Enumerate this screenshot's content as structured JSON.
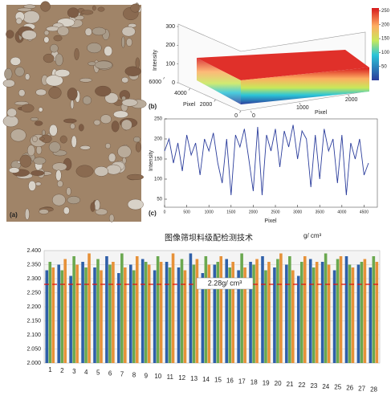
{
  "chart_data": [
    {
      "type": "photo",
      "label": "(a)"
    },
    {
      "type": "surface",
      "label": "(b)",
      "zlabel": "Intensity",
      "xlabel": "Pixel",
      "ylabel": "Pixel",
      "zlim": [
        0,
        300
      ],
      "zticks": [
        0,
        100,
        200,
        300
      ],
      "ylim": [
        0,
        6000
      ],
      "yticks": [
        0,
        2000,
        4000,
        6000
      ],
      "xlim": [
        0,
        2400
      ],
      "xticks": [
        0,
        1000,
        2000
      ],
      "clim": [
        0,
        260
      ],
      "cticks": [
        50,
        100,
        150,
        200,
        250
      ]
    },
    {
      "type": "line",
      "label": "(c)",
      "ylabel": "Intensity",
      "xlabel": "Pixel",
      "color": "#2b3d9c",
      "xlim": [
        0,
        4800
      ],
      "xticks": [
        0,
        500,
        1000,
        1500,
        2000,
        2500,
        3000,
        3500,
        4000,
        4500
      ],
      "ylim": [
        30,
        250
      ],
      "yticks": [
        50,
        100,
        150,
        200,
        250
      ],
      "x": [
        0,
        100,
        200,
        300,
        400,
        500,
        600,
        700,
        800,
        900,
        1000,
        1100,
        1200,
        1300,
        1400,
        1500,
        1600,
        1700,
        1800,
        1900,
        2000,
        2100,
        2200,
        2300,
        2400,
        2500,
        2600,
        2700,
        2800,
        2900,
        3000,
        3100,
        3200,
        3300,
        3400,
        3500,
        3600,
        3700,
        3800,
        3900,
        4000,
        4100,
        4200,
        4300,
        4400,
        4500,
        4600
      ],
      "values": [
        170,
        200,
        140,
        190,
        120,
        210,
        160,
        190,
        110,
        200,
        170,
        215,
        140,
        90,
        200,
        60,
        210,
        180,
        225,
        150,
        70,
        230,
        60,
        210,
        170,
        225,
        130,
        220,
        180,
        235,
        150,
        220,
        200,
        80,
        210,
        100,
        225,
        170,
        200,
        90,
        210,
        60,
        190,
        150,
        200,
        110,
        140
      ]
    },
    {
      "type": "bar",
      "title": "图像筛坝料级配检测技术",
      "unit": "g/ cm³",
      "annotation": "2.28g/ cm³",
      "reference_line": 2.28,
      "ylim": [
        2.0,
        2.4
      ],
      "yticks": [
        {
          "value": 2.0,
          "label": "2.000"
        },
        {
          "value": 2.05,
          "label": "2.050"
        },
        {
          "value": 2.1,
          "label": "2.100"
        },
        {
          "value": 2.15,
          "label": "2.150"
        },
        {
          "value": 2.2,
          "label": "2.200"
        },
        {
          "value": 2.25,
          "label": "2.250"
        },
        {
          "value": 2.3,
          "label": "2.300"
        },
        {
          "value": 2.35,
          "label": "2.350"
        },
        {
          "value": 2.4,
          "label": "2.400"
        }
      ],
      "categories": [
        "1",
        "2",
        "3",
        "4",
        "5",
        "6",
        "7",
        "8",
        "9",
        "10",
        "11",
        "12",
        "13",
        "14",
        "15",
        "16",
        "17",
        "18",
        "19",
        "20",
        "21",
        "22",
        "23",
        "24",
        "25",
        "26",
        "27",
        "28"
      ],
      "series": [
        {
          "color": "#2e5fa8",
          "values": [
            2.33,
            2.35,
            2.31,
            2.36,
            2.34,
            2.38,
            2.32,
            2.35,
            2.37,
            2.33,
            2.36,
            2.34,
            2.39,
            2.32,
            2.35,
            2.37,
            2.33,
            2.36,
            2.38,
            2.34,
            2.35,
            2.31,
            2.37,
            2.36,
            2.33,
            2.38,
            2.35,
            2.34
          ]
        },
        {
          "color": "#6aa84f",
          "values": [
            2.36,
            2.33,
            2.38,
            2.34,
            2.37,
            2.35,
            2.39,
            2.33,
            2.36,
            2.38,
            2.34,
            2.37,
            2.35,
            2.38,
            2.36,
            2.34,
            2.39,
            2.35,
            2.33,
            2.37,
            2.38,
            2.36,
            2.34,
            2.39,
            2.37,
            2.35,
            2.36,
            2.38
          ]
        },
        {
          "color": "#e69138",
          "values": [
            2.34,
            2.37,
            2.35,
            2.39,
            2.33,
            2.36,
            2.34,
            2.38,
            2.35,
            2.36,
            2.39,
            2.33,
            2.37,
            2.35,
            2.38,
            2.36,
            2.34,
            2.37,
            2.36,
            2.39,
            2.33,
            2.38,
            2.36,
            2.35,
            2.38,
            2.34,
            2.37,
            2.36
          ]
        }
      ]
    }
  ]
}
